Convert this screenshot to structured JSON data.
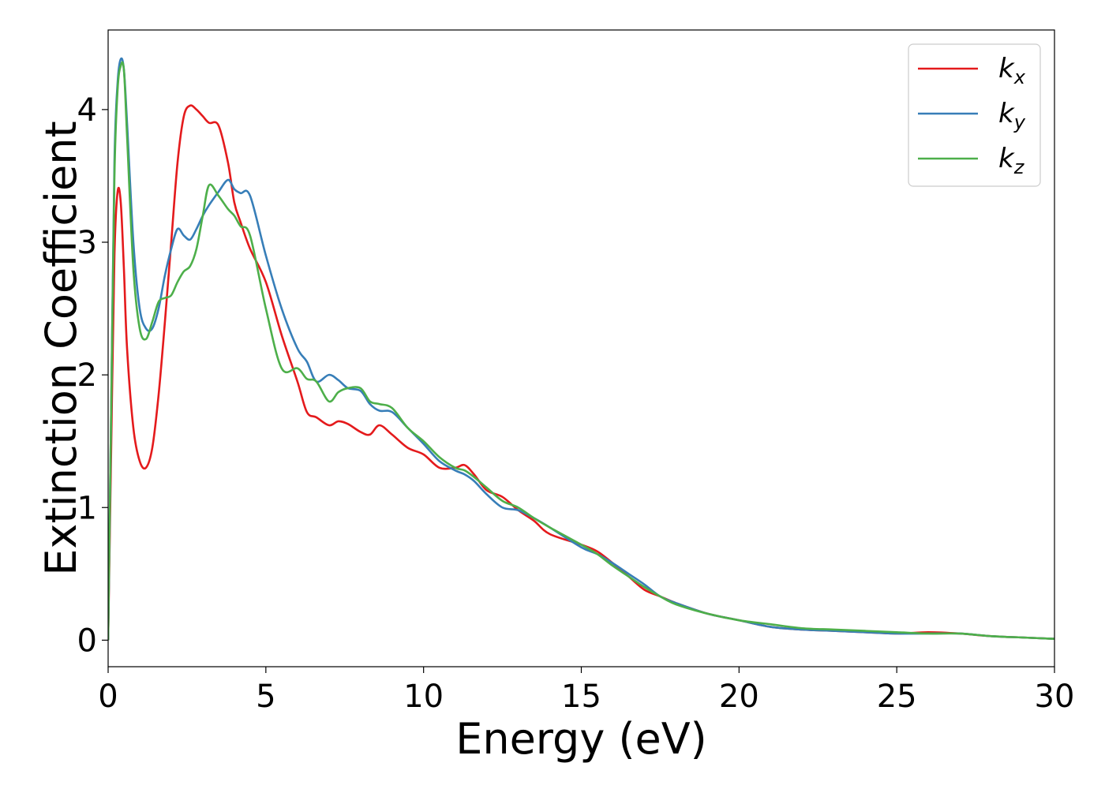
{
  "chart_data": {
    "type": "line",
    "xlabel": "Energy (eV)",
    "ylabel": "Extinction Coefficient",
    "xlim": [
      0,
      30
    ],
    "ylim": [
      -0.2,
      4.6
    ],
    "xticks": [
      0,
      5,
      10,
      15,
      20,
      25,
      30
    ],
    "yticks": [
      0,
      1,
      2,
      3,
      4
    ],
    "grid": false,
    "legend_position": "top-right",
    "series": [
      {
        "name": "k_x",
        "label_base": "k",
        "label_sub": "x",
        "color": "#e41a1c",
        "x": [
          0,
          0.1,
          0.2,
          0.3,
          0.4,
          0.5,
          0.6,
          0.8,
          1.0,
          1.2,
          1.4,
          1.6,
          1.8,
          2.0,
          2.2,
          2.4,
          2.6,
          2.8,
          3.0,
          3.2,
          3.5,
          3.8,
          4.0,
          4.2,
          4.5,
          5.0,
          5.5,
          6.0,
          6.3,
          6.6,
          7.0,
          7.3,
          7.6,
          8.0,
          8.3,
          8.6,
          9.0,
          9.5,
          10.0,
          10.5,
          11.0,
          11.3,
          11.6,
          12.0,
          12.5,
          13.0,
          13.5,
          14.0,
          15.0,
          15.5,
          16.0,
          16.5,
          17.0,
          17.5,
          18.0,
          19.0,
          20.0,
          21.0,
          22.0,
          23.0,
          24.0,
          25.0,
          26.0,
          27.0,
          28.0,
          29.0,
          30.0
        ],
        "values": [
          0,
          1.5,
          2.9,
          3.38,
          3.3,
          2.8,
          2.2,
          1.6,
          1.35,
          1.3,
          1.45,
          1.85,
          2.4,
          3.0,
          3.6,
          3.95,
          4.03,
          4.0,
          3.95,
          3.9,
          3.88,
          3.6,
          3.3,
          3.15,
          2.95,
          2.7,
          2.3,
          1.95,
          1.72,
          1.68,
          1.62,
          1.65,
          1.63,
          1.57,
          1.55,
          1.62,
          1.55,
          1.45,
          1.4,
          1.3,
          1.3,
          1.32,
          1.25,
          1.13,
          1.08,
          0.98,
          0.9,
          0.8,
          0.72,
          0.67,
          0.58,
          0.48,
          0.38,
          0.33,
          0.28,
          0.2,
          0.15,
          0.1,
          0.08,
          0.07,
          0.06,
          0.05,
          0.06,
          0.05,
          0.03,
          0.02,
          0.01
        ]
      },
      {
        "name": "k_y",
        "label_base": "k",
        "label_sub": "y",
        "color": "#377eb8",
        "x": [
          0,
          0.1,
          0.2,
          0.3,
          0.4,
          0.5,
          0.6,
          0.8,
          1.0,
          1.2,
          1.4,
          1.6,
          1.8,
          2.0,
          2.2,
          2.4,
          2.6,
          2.8,
          3.0,
          3.2,
          3.5,
          3.8,
          4.0,
          4.2,
          4.5,
          5.0,
          5.5,
          6.0,
          6.3,
          6.6,
          7.0,
          7.3,
          7.6,
          8.0,
          8.3,
          8.6,
          9.0,
          9.5,
          10.0,
          10.5,
          11.0,
          11.3,
          11.6,
          12.0,
          12.5,
          13.0,
          13.5,
          14.0,
          15.0,
          15.5,
          16.0,
          16.5,
          17.0,
          17.5,
          18.0,
          19.0,
          20.0,
          21.0,
          22.0,
          23.0,
          24.0,
          25.0,
          26.0,
          27.0,
          28.0,
          29.0,
          30.0
        ],
        "values": [
          0,
          1.8,
          3.6,
          4.2,
          4.38,
          4.3,
          3.9,
          3.0,
          2.5,
          2.35,
          2.35,
          2.5,
          2.75,
          2.95,
          3.1,
          3.05,
          3.02,
          3.1,
          3.2,
          3.28,
          3.38,
          3.47,
          3.4,
          3.37,
          3.35,
          2.9,
          2.5,
          2.2,
          2.1,
          1.95,
          2.0,
          1.96,
          1.9,
          1.88,
          1.78,
          1.73,
          1.72,
          1.6,
          1.48,
          1.35,
          1.28,
          1.25,
          1.2,
          1.1,
          1.0,
          0.98,
          0.92,
          0.85,
          0.7,
          0.65,
          0.58,
          0.5,
          0.42,
          0.33,
          0.28,
          0.2,
          0.15,
          0.1,
          0.08,
          0.07,
          0.06,
          0.05,
          0.05,
          0.05,
          0.03,
          0.02,
          0.01
        ]
      },
      {
        "name": "k_z",
        "label_base": "k",
        "label_sub": "z",
        "color": "#4daf4a",
        "x": [
          0,
          0.1,
          0.2,
          0.3,
          0.4,
          0.5,
          0.6,
          0.8,
          1.0,
          1.2,
          1.4,
          1.6,
          1.8,
          2.0,
          2.2,
          2.4,
          2.6,
          2.8,
          3.0,
          3.2,
          3.5,
          3.8,
          4.0,
          4.2,
          4.5,
          5.0,
          5.5,
          6.0,
          6.3,
          6.6,
          7.0,
          7.3,
          7.6,
          8.0,
          8.3,
          8.6,
          9.0,
          9.5,
          10.0,
          10.5,
          11.0,
          11.3,
          11.6,
          12.0,
          12.5,
          13.0,
          13.5,
          14.0,
          15.0,
          15.5,
          16.0,
          16.5,
          17.0,
          17.5,
          18.0,
          19.0,
          20.0,
          21.0,
          22.0,
          23.0,
          24.0,
          25.0,
          26.0,
          27.0,
          28.0,
          29.0,
          30.0
        ],
        "values": [
          0,
          1.8,
          3.5,
          4.15,
          4.33,
          4.3,
          3.8,
          2.8,
          2.35,
          2.27,
          2.4,
          2.55,
          2.58,
          2.6,
          2.7,
          2.78,
          2.82,
          2.95,
          3.2,
          3.43,
          3.35,
          3.25,
          3.2,
          3.12,
          3.05,
          2.5,
          2.05,
          2.05,
          1.97,
          1.95,
          1.8,
          1.87,
          1.9,
          1.9,
          1.8,
          1.78,
          1.75,
          1.6,
          1.5,
          1.38,
          1.3,
          1.28,
          1.23,
          1.15,
          1.05,
          1.0,
          0.92,
          0.85,
          0.72,
          0.65,
          0.56,
          0.48,
          0.4,
          0.33,
          0.27,
          0.2,
          0.15,
          0.12,
          0.09,
          0.08,
          0.07,
          0.06,
          0.05,
          0.05,
          0.03,
          0.02,
          0.01
        ]
      }
    ]
  }
}
